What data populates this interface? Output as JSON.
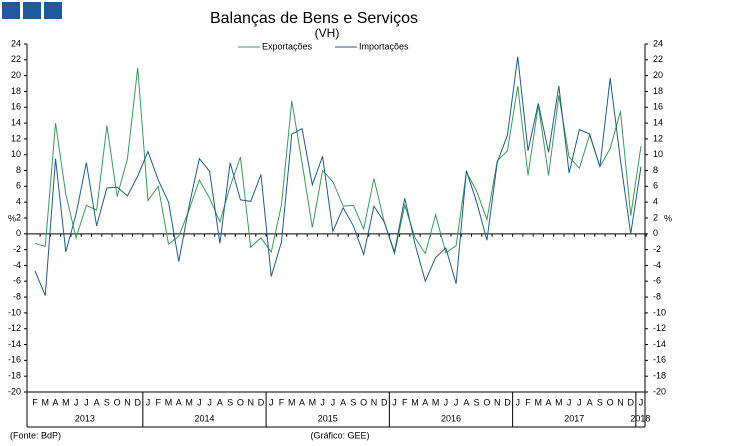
{
  "chart_data": {
    "type": "line",
    "title": "Balanças de Bens e Serviços",
    "subtitle": "(VH)",
    "y_unit": "%",
    "categories": [
      "F",
      "M",
      "A",
      "M",
      "J",
      "J",
      "A",
      "S",
      "O",
      "N",
      "D",
      "J",
      "F",
      "M",
      "A",
      "M",
      "J",
      "J",
      "A",
      "S",
      "O",
      "N",
      "D",
      "J",
      "F",
      "M",
      "A",
      "M",
      "J",
      "J",
      "A",
      "S",
      "O",
      "N",
      "D",
      "J",
      "F",
      "M",
      "A",
      "M",
      "J",
      "J",
      "A",
      "S",
      "O",
      "N",
      "D",
      "J",
      "F",
      "M",
      "A",
      "M",
      "J",
      "J",
      "A",
      "S",
      "O",
      "N",
      "D",
      "J"
    ],
    "years": [
      "2013",
      "2014",
      "2015",
      "2016",
      "2017",
      "2018"
    ],
    "series": [
      {
        "name": "Exportações",
        "color": "#3a9a5b",
        "values": [
          -1.2,
          -1.6,
          14,
          5,
          -0.5,
          3.6,
          3,
          13.7,
          4.7,
          9.5,
          21,
          4.2,
          6,
          -1.3,
          -0.3,
          3,
          6.8,
          4.5,
          1.5,
          6,
          9.7,
          -1.7,
          -0.5,
          -2.3,
          3.7,
          16.8,
          9,
          0.8,
          8,
          6.6,
          3.5,
          3.6,
          0.6,
          7,
          1.5,
          -2.5,
          3.6,
          -0.5,
          -2.5,
          2.4,
          -2.4,
          -1.5,
          7.8,
          5.4,
          1.8,
          9.2,
          10.5,
          18.7,
          7.4,
          16.3,
          7.4,
          17.5,
          9.7,
          8.3,
          12.5,
          8.5,
          10.8,
          15.5,
          2.3,
          11.1
        ]
      },
      {
        "name": "Importações",
        "color": "#1f5a8c",
        "values": [
          -4.7,
          -7.8,
          9.5,
          -2.3,
          2.5,
          9,
          1,
          5.8,
          5.9,
          4.8,
          7.3,
          10.4,
          6.8,
          4,
          -3.5,
          3.5,
          9.5,
          7.9,
          -1.2,
          9,
          4.3,
          4.1,
          7.5,
          -5.4,
          -1,
          12.6,
          13.3,
          6.2,
          9.8,
          0.3,
          3.3,
          1,
          -2.6,
          3.5,
          1.5,
          -2.3,
          4.5,
          -1.3,
          -6,
          -3,
          -1.8,
          -6.3,
          8,
          4,
          -0.8,
          9,
          12.5,
          22.4,
          10.5,
          16.5,
          10.3,
          18.7,
          7.7,
          13.2,
          12.6,
          8.5,
          19.7,
          9.3,
          0,
          8.5
        ]
      }
    ],
    "ylim": [
      -20,
      24
    ],
    "yticks": [
      -20,
      -18,
      -16,
      -14,
      -12,
      -10,
      -8,
      -6,
      -4,
      -2,
      0,
      2,
      4,
      6,
      8,
      10,
      12,
      14,
      16,
      18,
      20,
      22,
      24
    ],
    "grid": false,
    "legend": "top",
    "footer_left": "(Fonte: BdP)",
    "footer_center": "(Gráfico: GEE)"
  }
}
